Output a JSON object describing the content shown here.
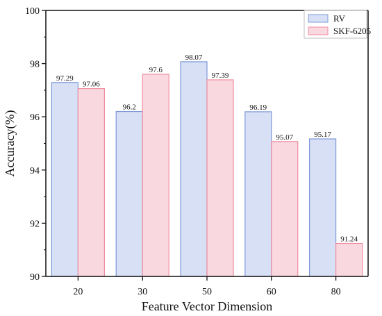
{
  "chart_data": {
    "type": "bar",
    "title": "",
    "xlabel": "Feature Vector Dimension",
    "ylabel": "Accuracy(%)",
    "categories": [
      "20",
      "30",
      "50",
      "60",
      "80"
    ],
    "series": [
      {
        "name": "RV",
        "values": [
          97.29,
          96.2,
          98.07,
          96.19,
          95.17
        ],
        "labels": [
          "97.29",
          "96.2",
          "98.07",
          "96.19",
          "95.17"
        ],
        "fill": "#d7e0f5",
        "stroke": "#7d98d8"
      },
      {
        "name": "SKF-6205",
        "values": [
          97.06,
          97.6,
          97.39,
          95.07,
          91.24
        ],
        "labels": [
          "97.06",
          "97.6",
          "97.39",
          "95.07",
          "91.24"
        ],
        "fill": "#f9d8df",
        "stroke": "#ef8da0"
      }
    ],
    "ylim": [
      90,
      100
    ],
    "yticks": [
      90,
      92,
      94,
      96,
      98,
      100
    ],
    "grid": false,
    "legend_position": "top-right"
  }
}
